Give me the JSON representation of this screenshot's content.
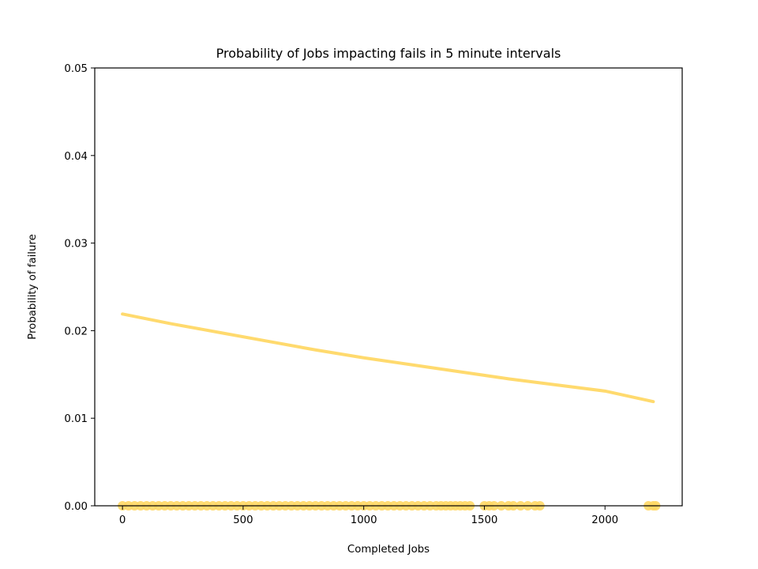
{
  "chart_data": {
    "type": "scatter",
    "title": "Probability of Jobs impacting fails in 5 minute intervals",
    "xlabel": "Completed Jobs",
    "ylabel": "Probability of failure",
    "xlim": [
      -115,
      2320
    ],
    "ylim": [
      0,
      0.05
    ],
    "x_ticks": [
      {
        "value": 0,
        "label": "0"
      },
      {
        "value": 500,
        "label": "500"
      },
      {
        "value": 1000,
        "label": "1000"
      },
      {
        "value": 1500,
        "label": "1500"
      },
      {
        "value": 2000,
        "label": "2000"
      }
    ],
    "y_ticks": [
      {
        "value": 0,
        "label": "0.00"
      },
      {
        "value": 0.01,
        "label": "0.01"
      },
      {
        "value": 0.02,
        "label": "0.02"
      },
      {
        "value": 0.03,
        "label": "0.03"
      },
      {
        "value": 0.04,
        "label": "0.04"
      },
      {
        "value": 0.05,
        "label": "0.05"
      }
    ],
    "grid": false,
    "legend": "none",
    "color": "#FFD866",
    "series": [
      {
        "kind": "scatter",
        "x": [
          0,
          25,
          50,
          75,
          100,
          125,
          150,
          175,
          200,
          225,
          250,
          275,
          300,
          325,
          350,
          375,
          400,
          425,
          450,
          475,
          500,
          525,
          550,
          575,
          600,
          625,
          650,
          675,
          700,
          725,
          750,
          775,
          800,
          825,
          850,
          875,
          900,
          925,
          950,
          975,
          1000,
          1025,
          1050,
          1075,
          1100,
          1125,
          1150,
          1175,
          1200,
          1225,
          1250,
          1275,
          1300,
          1320,
          1340,
          1360,
          1380,
          1400,
          1420,
          1440,
          1500,
          1520,
          1540,
          1570,
          1600,
          1620,
          1650,
          1680,
          1710,
          1730,
          2180,
          2200,
          2210
        ],
        "y": [
          0,
          0,
          0,
          0,
          0,
          0,
          0,
          0,
          0,
          0,
          0,
          0,
          0,
          0,
          0,
          0,
          0,
          0,
          0,
          0,
          0,
          0,
          0,
          0,
          0,
          0,
          0,
          0,
          0,
          0,
          0,
          0,
          0,
          0,
          0,
          0,
          0,
          0,
          0,
          0,
          0,
          0,
          0,
          0,
          0,
          0,
          0,
          0,
          0,
          0,
          0,
          0,
          0,
          0,
          0,
          0,
          0,
          0,
          0,
          0,
          0,
          0,
          0,
          0,
          0,
          0,
          0,
          0,
          0,
          0,
          0,
          0,
          0
        ]
      },
      {
        "kind": "line",
        "x": [
          0,
          200,
          400,
          600,
          800,
          1000,
          1200,
          1400,
          1600,
          1800,
          2000,
          2200
        ],
        "y": [
          0.0219,
          0.0208,
          0.0198,
          0.0188,
          0.0178,
          0.0169,
          0.0161,
          0.0153,
          0.0145,
          0.0138,
          0.0131,
          0.0119
        ]
      }
    ]
  }
}
